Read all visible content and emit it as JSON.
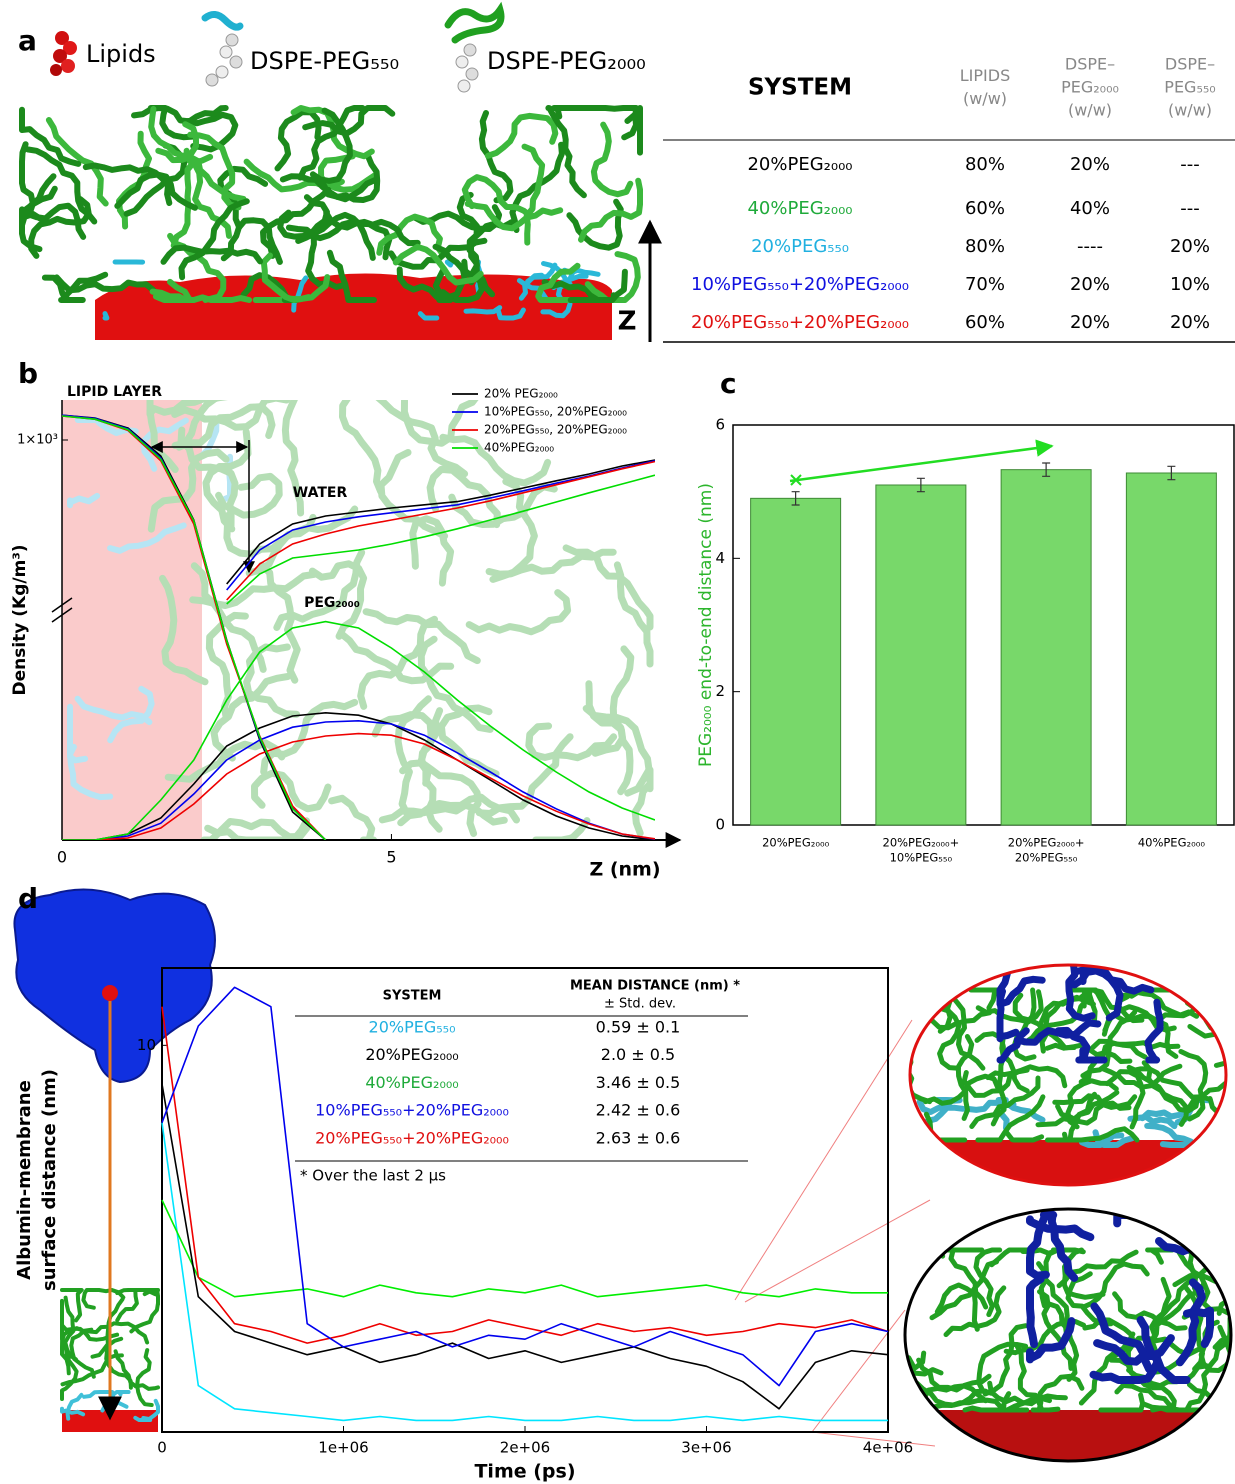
{
  "panel_labels": [
    "a",
    "b",
    "c",
    "d"
  ],
  "panel_a": {
    "legend": [
      "Lipids",
      "DSPE-PEG₅₅₀",
      "DSPE-PEG₂₀₀₀"
    ],
    "axis_label": "Z",
    "table": {
      "header": [
        [
          "SYSTEM"
        ],
        [
          "LIPIDS",
          "(w/w)"
        ],
        [
          "DSPE–",
          "PEG₂₀₀₀",
          "(w/w)"
        ],
        [
          "DSPE–",
          "PEG₅₅₀",
          "(w/w)"
        ]
      ],
      "rows": [
        {
          "system": "20%PEG₂₀₀₀",
          "color": "#000000",
          "cells": [
            "80%",
            "20%",
            "---"
          ]
        },
        {
          "system": "40%PEG₂₀₀₀",
          "color": "#1faa3a",
          "cells": [
            "60%",
            "40%",
            "---"
          ]
        },
        {
          "system": "20%PEG₅₅₀",
          "color": "#20b0e0",
          "cells": [
            "80%",
            "----",
            "20%"
          ]
        },
        {
          "system": "10%PEG₅₅₀+20%PEG₂₀₀₀",
          "color": "#1010e0",
          "cells": [
            "70%",
            "20%",
            "10%"
          ]
        },
        {
          "system": "20%PEG₅₅₀+20%PEG₂₀₀₀",
          "color": "#e01010",
          "cells": [
            "60%",
            "20%",
            "20%"
          ]
        }
      ]
    }
  },
  "chart_data": [
    {
      "type": "line",
      "annotations": [
        "LIPID LAYER",
        "WATER",
        "PEG₂₀₀₀"
      ],
      "xlabel": "Z (nm)",
      "ylabel": "Density (Kg/m³)",
      "x": [
        0,
        0.5,
        1,
        1.5,
        2,
        2.5,
        3,
        3.5,
        4,
        4.5,
        5,
        5.5,
        6,
        6.5,
        7,
        7.5,
        8,
        8.5,
        9
      ],
      "xlim": [
        0,
        9
      ],
      "xticks": [
        0,
        5
      ],
      "ylim": [
        0,
        1100
      ],
      "yticks": [
        {
          "value": 1000,
          "label": "1×10³"
        }
      ],
      "series": [
        {
          "name": "20% PEG₂₀₀₀",
          "color": "#000000",
          "values": [
            0,
            0,
            15,
            55,
            140,
            235,
            280,
            310,
            318,
            312,
            290,
            250,
            200,
            150,
            100,
            60,
            30,
            10,
            0
          ],
          "water": [
            null,
            null,
            null,
            null,
            null,
            640,
            740,
            790,
            810,
            820,
            830,
            838,
            846,
            862,
            880,
            898,
            915,
            935,
            950
          ],
          "lipid": [
            1062,
            1055,
            1030,
            960,
            800,
            500,
            250,
            70,
            0,
            null,
            null,
            null,
            null,
            null,
            null,
            null,
            null,
            null,
            null
          ]
        },
        {
          "name": "10%PEG₅₅₀, 20%PEG₂₀₀₀",
          "color": "#0000ee",
          "values": [
            0,
            0,
            10,
            42,
            115,
            200,
            250,
            282,
            295,
            298,
            290,
            262,
            218,
            170,
            120,
            78,
            42,
            15,
            2
          ],
          "water": [
            null,
            null,
            null,
            null,
            null,
            625,
            725,
            775,
            795,
            808,
            818,
            828,
            838,
            855,
            873,
            892,
            910,
            930,
            948
          ],
          "lipid": [
            1062,
            1054,
            1028,
            955,
            795,
            495,
            255,
            80,
            0,
            null,
            null,
            null,
            null,
            null,
            null,
            null,
            null,
            null,
            null
          ]
        },
        {
          "name": "20%PEG₅₅₀, 20%PEG₂₀₀₀",
          "color": "#ee0000",
          "values": [
            0,
            0,
            5,
            30,
            90,
            165,
            215,
            245,
            260,
            266,
            262,
            240,
            200,
            155,
            110,
            72,
            40,
            15,
            3
          ],
          "water": [
            null,
            null,
            null,
            null,
            null,
            600,
            690,
            740,
            765,
            785,
            800,
            815,
            830,
            848,
            868,
            888,
            908,
            928,
            946
          ],
          "lipid": [
            1060,
            1052,
            1024,
            948,
            790,
            490,
            260,
            85,
            0,
            null,
            null,
            null,
            null,
            null,
            null,
            null,
            null,
            null,
            null
          ]
        },
        {
          "name": "40%PEG₂₀₀₀",
          "color": "#00dd00",
          "values": [
            0,
            0,
            15,
            100,
            200,
            350,
            470,
            530,
            546,
            530,
            480,
            420,
            350,
            285,
            225,
            170,
            120,
            80,
            50
          ],
          "water": [
            null,
            null,
            null,
            null,
            null,
            590,
            665,
            705,
            715,
            725,
            740,
            758,
            778,
            800,
            822,
            845,
            868,
            890,
            912
          ],
          "lipid": [
            1060,
            1052,
            1026,
            952,
            798,
            498,
            258,
            78,
            0,
            null,
            null,
            null,
            null,
            null,
            null,
            null,
            null,
            null,
            null
          ]
        }
      ]
    },
    {
      "type": "bar",
      "ylabel": "PEG₂₀₀₀ end-to-end distance (nm)",
      "categories": [
        [
          "20%PEG₂₀₀₀"
        ],
        [
          "20%PEG₂₀₀₀+",
          "10%PEG₅₅₀"
        ],
        [
          "20%PEG₂₀₀₀+",
          "20%PEG₅₅₀"
        ],
        [
          "40%PEG₂₀₀₀"
        ]
      ],
      "values": [
        4.9,
        5.1,
        5.33,
        5.28
      ],
      "errors": [
        0.1,
        0.1,
        0.1,
        0.1
      ],
      "color": "#78d86a",
      "ylim": [
        0,
        6
      ],
      "yticks": [
        0,
        2,
        4,
        6
      ]
    },
    {
      "type": "line",
      "xlabel": "Time (ps)",
      "ylabel": [
        "Albumin-membrane",
        "surface distance (nm)"
      ],
      "x": [
        0,
        200000,
        400000,
        600000,
        800000,
        1000000,
        1200000,
        1400000,
        1600000,
        1800000,
        2000000,
        2200000,
        2400000,
        2600000,
        2800000,
        3000000,
        3200000,
        3400000,
        3600000,
        3800000,
        4000000
      ],
      "xlim": [
        0,
        4000000
      ],
      "xticks": [
        0,
        {
          "value": 1000000,
          "label": "1e+06"
        },
        {
          "value": 2000000,
          "label": "2e+06"
        },
        {
          "value": 3000000,
          "label": "3e+06"
        },
        {
          "value": 4000000,
          "label": "4e+06"
        }
      ],
      "ylim": [
        0,
        12
      ],
      "yticks": [
        10
      ],
      "series": [
        {
          "color": "#00e5ff",
          "values": [
            8,
            1.2,
            0.6,
            0.5,
            0.4,
            0.3,
            0.4,
            0.3,
            0.3,
            0.4,
            0.3,
            0.3,
            0.4,
            0.3,
            0.3,
            0.4,
            0.3,
            0.4,
            0.3,
            0.3,
            0.3
          ]
        },
        {
          "color": "#00ee00",
          "values": [
            6,
            4,
            3.5,
            3.6,
            3.7,
            3.5,
            3.8,
            3.6,
            3.5,
            3.7,
            3.6,
            3.8,
            3.5,
            3.6,
            3.7,
            3.8,
            3.6,
            3.5,
            3.7,
            3.6,
            3.6
          ]
        },
        {
          "color": "#000000",
          "values": [
            9,
            3.5,
            2.6,
            2.3,
            2,
            2.2,
            1.8,
            2,
            2.3,
            1.9,
            2.1,
            1.8,
            2,
            2.2,
            1.9,
            1.7,
            1.3,
            0.6,
            1.8,
            2.1,
            2
          ]
        },
        {
          "color": "#ee0000",
          "values": [
            11,
            4,
            2.8,
            2.6,
            2.3,
            2.5,
            2.8,
            2.5,
            2.6,
            2.9,
            2.7,
            2.5,
            2.8,
            2.6,
            2.7,
            2.5,
            2.6,
            2.8,
            2.7,
            2.9,
            2.6
          ]
        },
        {
          "color": "#0000ee",
          "values": [
            8,
            10.5,
            11.5,
            11,
            2.8,
            2.2,
            2.4,
            2.6,
            2.2,
            2.5,
            2.4,
            2.8,
            2.5,
            2.2,
            2.6,
            2.3,
            2,
            1.2,
            2.6,
            2.8,
            2.6
          ]
        }
      ]
    }
  ],
  "panel_d_table": {
    "header": [
      "SYSTEM",
      "MEAN  DISTANCE (nm) *",
      "± Std. dev."
    ],
    "rows": [
      {
        "system": "20%PEG₅₅₀",
        "color": "#20b0e0",
        "value": "0.59 ± 0.1"
      },
      {
        "system": "20%PEG₂₀₀₀",
        "color": "#000000",
        "value": "2.0 ± 0.5"
      },
      {
        "system": "40%PEG₂₀₀₀",
        "color": "#1faa3a",
        "value": "3.46 ± 0.5"
      },
      {
        "system": "10%PEG₅₅₀+20%PEG₂₀₀₀",
        "color": "#1010e0",
        "value": "2.42 ± 0.6"
      },
      {
        "system": "20%PEG₅₅₀+20%PEG₂₀₀₀",
        "color": "#e01010",
        "value": "2.63 ± 0.6"
      }
    ],
    "note": "* Over the last 2 µs"
  }
}
